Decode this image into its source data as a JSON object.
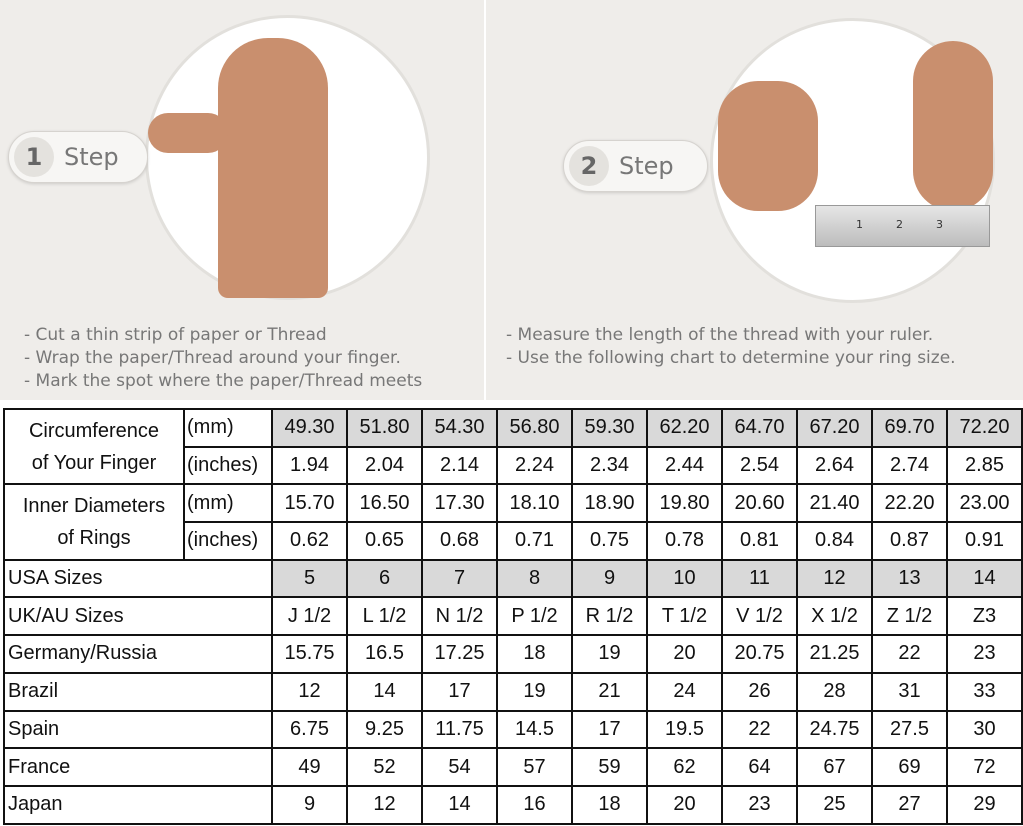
{
  "steps": [
    {
      "number": "1",
      "label": "Step",
      "instructions": [
        "- Cut a thin strip of paper or Thread",
        "- Wrap the paper/Thread around your finger.",
        "- Mark the spot where the paper/Thread meets"
      ]
    },
    {
      "number": "2",
      "label": "Step",
      "instructions": [
        "- Measure the length of the thread with your ruler.",
        "- Use the following chart to determine your ring size."
      ]
    }
  ],
  "ruler_marks": [
    "1",
    "2",
    "3"
  ],
  "table": {
    "circumference": {
      "label_line1": "Circumference",
      "label_line2": "of Your Finger",
      "unit_mm": "(mm)",
      "unit_in": "(inches)",
      "mm": [
        "49.30",
        "51.80",
        "54.30",
        "56.80",
        "59.30",
        "62.20",
        "64.70",
        "67.20",
        "69.70",
        "72.20"
      ],
      "inches": [
        "1.94",
        "2.04",
        "2.14",
        "2.24",
        "2.34",
        "2.44",
        "2.54",
        "2.64",
        "2.74",
        "2.85"
      ]
    },
    "inner_diameter": {
      "label_line1": "Inner Diameters",
      "label_line2": "of Rings",
      "unit_mm": "(mm)",
      "unit_in": "(inches)",
      "mm": [
        "15.70",
        "16.50",
        "17.30",
        "18.10",
        "18.90",
        "19.80",
        "20.60",
        "21.40",
        "22.20",
        "23.00"
      ],
      "inches": [
        "0.62",
        "0.65",
        "0.68",
        "0.71",
        "0.75",
        "0.78",
        "0.81",
        "0.84",
        "0.87",
        "0.91"
      ]
    },
    "rows": [
      {
        "label": "USA Sizes",
        "values": [
          "5",
          "6",
          "7",
          "8",
          "9",
          "10",
          "11",
          "12",
          "13",
          "14"
        ]
      },
      {
        "label": "UK/AU Sizes",
        "values": [
          "J 1/2",
          "L 1/2",
          "N 1/2",
          "P 1/2",
          "R 1/2",
          "T 1/2",
          "V 1/2",
          "X 1/2",
          "Z 1/2",
          "Z3"
        ]
      },
      {
        "label": "Germany/Russia",
        "values": [
          "15.75",
          "16.5",
          "17.25",
          "18",
          "19",
          "20",
          "20.75",
          "21.25",
          "22",
          "23"
        ]
      },
      {
        "label": "Brazil",
        "values": [
          "12",
          "14",
          "17",
          "19",
          "21",
          "24",
          "26",
          "28",
          "31",
          "33"
        ]
      },
      {
        "label": "Spain",
        "values": [
          "6.75",
          "9.25",
          "11.75",
          "14.5",
          "17",
          "19.5",
          "22",
          "24.75",
          "27.5",
          "30"
        ]
      },
      {
        "label": "France",
        "values": [
          "49",
          "52",
          "54",
          "57",
          "59",
          "62",
          "64",
          "67",
          "69",
          "72"
        ]
      },
      {
        "label": "Japan",
        "values": [
          "9",
          "12",
          "14",
          "16",
          "18",
          "20",
          "23",
          "25",
          "27",
          "29"
        ]
      }
    ]
  },
  "colors": {
    "highlight": "#d9d9d9",
    "background": "#efedea"
  }
}
